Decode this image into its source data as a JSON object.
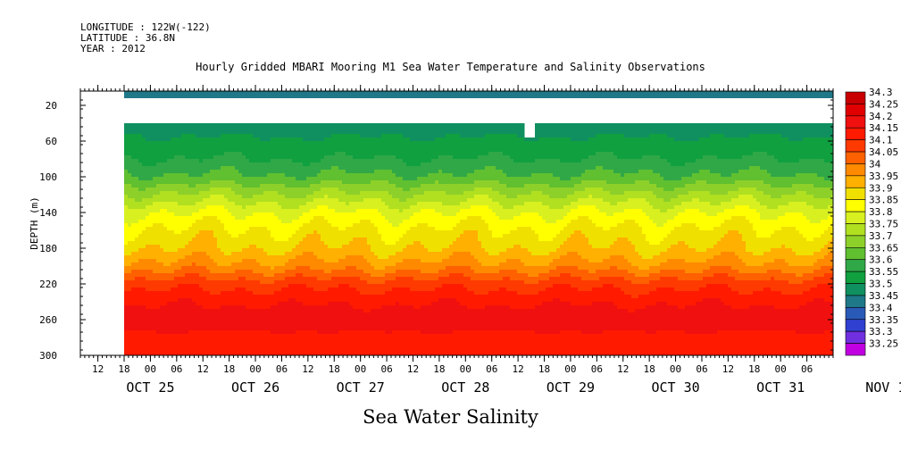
{
  "header": {
    "longitude": "LONGITUDE : 122W(-122)",
    "latitude": "LATITUDE : 36.8N",
    "year": "YEAR : 2012"
  },
  "chart_data": {
    "type": "heatmap",
    "title": "Hourly Gridded MBARI Mooring M1 Sea Water Temperature and Salinity Observations",
    "xlabel": "Sea Water Salinity",
    "ylabel": "DEPTH (m)",
    "yticks": [
      20,
      60,
      100,
      140,
      180,
      220,
      260,
      300
    ],
    "ylim": [
      300,
      4
    ],
    "xlim": [
      "2012-10-25 08:00",
      "2012-11-01 12:00"
    ],
    "hour_ticks": [
      "12",
      "18",
      "00",
      "06",
      "12",
      "18",
      "00",
      "06",
      "12",
      "18",
      "00",
      "06",
      "12",
      "18",
      "00",
      "06",
      "12",
      "18",
      "00",
      "06",
      "12",
      "18",
      "00",
      "06",
      "12",
      "18",
      "00",
      "06"
    ],
    "date_labels": [
      "OCT 25",
      "OCT 26",
      "OCT 27",
      "OCT 28",
      "OCT 29",
      "OCT 30",
      "OCT 31",
      "NOV  1"
    ],
    "data_start": "2012-10-25 18:00",
    "surface_salinity_depth_range_m": [
      4,
      12
    ],
    "surface_salinity": 33.47,
    "no_data_depth_range_m": [
      12,
      40
    ],
    "no_data_gap": {
      "time": "2012-10-29 14:00",
      "depth_range_m": [
        40,
        58
      ]
    },
    "profile": [
      {
        "depth": 40,
        "salinity": 33.52
      },
      {
        "depth": 60,
        "salinity": 33.56
      },
      {
        "depth": 80,
        "salinity": 33.6
      },
      {
        "depth": 100,
        "salinity": 33.66
      },
      {
        "depth": 120,
        "salinity": 33.76
      },
      {
        "depth": 140,
        "salinity": 33.85
      },
      {
        "depth": 160,
        "salinity": 33.91
      },
      {
        "depth": 180,
        "salinity": 33.95
      },
      {
        "depth": 200,
        "salinity": 34.02
      },
      {
        "depth": 220,
        "salinity": 34.13
      },
      {
        "depth": 240,
        "salinity": 34.19
      },
      {
        "depth": 260,
        "salinity": 34.24
      },
      {
        "depth": 280,
        "salinity": 34.18
      },
      {
        "depth": 300,
        "salinity": 34.17
      }
    ],
    "colorbar": {
      "levels": [
        "34.3",
        "34.25",
        "34.2",
        "34.15",
        "34.1",
        "34.05",
        "34",
        "33.95",
        "33.9",
        "33.85",
        "33.8",
        "33.75",
        "33.7",
        "33.65",
        "33.6",
        "33.55",
        "33.5",
        "33.45",
        "33.4",
        "33.35",
        "33.3",
        "33.25"
      ],
      "colors": [
        "#c80000",
        "#e00000",
        "#f01010",
        "#ff1a00",
        "#ff3a00",
        "#ff6000",
        "#ff8a00",
        "#ffb000",
        "#f0e000",
        "#ffff00",
        "#d8f020",
        "#b0e020",
        "#8ed02a",
        "#60c030",
        "#30a848",
        "#10a040",
        "#109060",
        "#1e7888",
        "#2a5ab8",
        "#3040d0",
        "#7030e0",
        "#c000e0"
      ]
    },
    "grid": false,
    "legend": "right"
  }
}
